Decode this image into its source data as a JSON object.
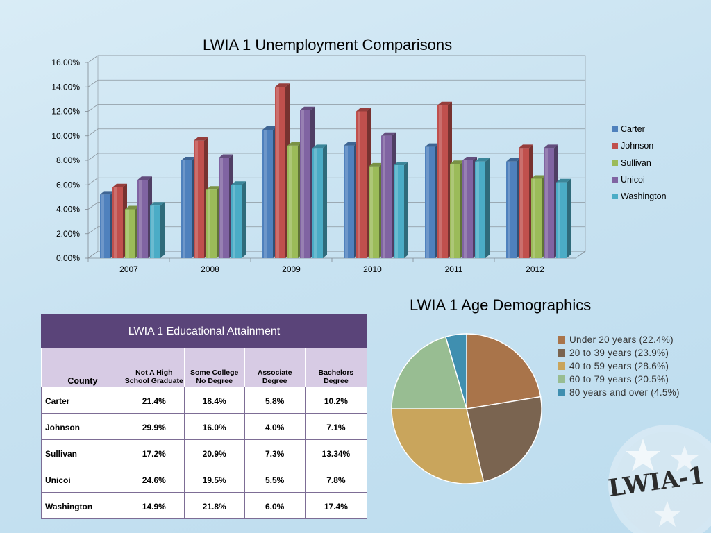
{
  "bar_chart": {
    "title": "LWIA 1 Unemployment Comparisons",
    "y_ticks": [
      "0.00%",
      "2.00%",
      "4.00%",
      "6.00%",
      "8.00%",
      "10.00%",
      "12.00%",
      "14.00%",
      "16.00%"
    ]
  },
  "pie_chart": {
    "title": "LWIA 1 Age Demographics"
  },
  "edu_table": {
    "title": "LWIA 1 Educational Attainment",
    "headers": [
      "County",
      "Not A High School Graduate",
      "Some College No Degree",
      "Associate Degree",
      "Bachelors Degree"
    ],
    "rows": [
      [
        "Carter",
        "21.4%",
        "18.4%",
        "5.8%",
        "10.2%"
      ],
      [
        "Johnson",
        "29.9%",
        "16.0%",
        "4.0%",
        "7.1%"
      ],
      [
        "Sullivan",
        "17.2%",
        "20.9%",
        "7.3%",
        "13.34%"
      ],
      [
        "Unicoi",
        "24.6%",
        "19.5%",
        "5.5%",
        "7.8%"
      ],
      [
        "Washington",
        "14.9%",
        "21.8%",
        "6.0%",
        "17.4%"
      ]
    ]
  },
  "logo": {
    "text": "LWIA-1"
  },
  "chart_data": [
    {
      "type": "bar",
      "title": "LWIA 1 Unemployment Comparisons",
      "categories": [
        "2007",
        "2008",
        "2009",
        "2010",
        "2011",
        "2012"
      ],
      "series": [
        {
          "name": "Carter",
          "color": "#4f81bd",
          "values": [
            5.2,
            8.0,
            10.5,
            9.2,
            9.1,
            7.9
          ]
        },
        {
          "name": "Johnson",
          "color": "#c0504d",
          "values": [
            5.8,
            9.6,
            14.0,
            12.0,
            12.5,
            9.0
          ]
        },
        {
          "name": "Sullivan",
          "color": "#9bbb59",
          "values": [
            4.0,
            5.6,
            9.2,
            7.5,
            7.7,
            6.5
          ]
        },
        {
          "name": "Unicoi",
          "color": "#8064a2",
          "values": [
            6.4,
            8.2,
            12.1,
            10.0,
            8.0,
            9.0
          ]
        },
        {
          "name": "Washington",
          "color": "#4bacc6",
          "values": [
            4.3,
            6.0,
            9.0,
            7.6,
            7.9,
            6.2
          ]
        }
      ],
      "ylim": [
        0,
        16
      ],
      "y_unit": "%",
      "grid": true,
      "legend": "right"
    },
    {
      "type": "pie",
      "title": "LWIA 1 Age Demographics",
      "slices": [
        {
          "label": "Under 20 years (22.4%)",
          "value": 22.4,
          "color": "#a9744a"
        },
        {
          "label": "20 to 39 years (23.9%)",
          "value": 23.9,
          "color": "#7a6450"
        },
        {
          "label": "40 to 59 years (28.6%)",
          "value": 28.6,
          "color": "#c9a55c"
        },
        {
          "label": "60 to 79 years (20.5%)",
          "value": 20.5,
          "color": "#98bd92"
        },
        {
          "label": "80 years and over (4.5%)",
          "value": 4.5,
          "color": "#3f8fb0"
        }
      ],
      "legend": "right"
    }
  ]
}
